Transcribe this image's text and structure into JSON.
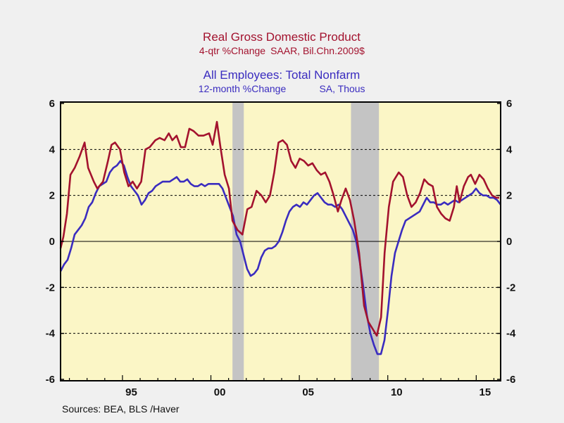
{
  "chart_data": {
    "type": "line",
    "title_1": "Real Gross Domestic Product",
    "subtitle_1_left": "4-qtr %Change",
    "subtitle_1_right": "SAAR, Bil.Chn.2009$",
    "title_2": "All Employees: Total Nonfarm",
    "subtitle_2_left": "12-month %Change",
    "subtitle_2_right": "SA, Thous",
    "source": "Sources:  BEA, BLS /Haver",
    "xlim": [
      1991.5,
      2016.38
    ],
    "ylim": [
      -6,
      6
    ],
    "y_ticks": [
      -6,
      -4,
      -2,
      0,
      2,
      4,
      6
    ],
    "y_tick_labels": [
      "-6",
      "-4",
      "-2",
      "0",
      "2",
      "4",
      "6"
    ],
    "x_ticks": [
      1995.5,
      2000.5,
      2005.5,
      2010.5,
      2015.5
    ],
    "x_tick_labels": [
      "95",
      "00",
      "05",
      "10",
      "15"
    ],
    "grid": "dashed horizontal at ±2, ±4; solid at 0",
    "colors": {
      "gdp": "#a3122e",
      "employment": "#3a2cbf",
      "plot_bg": "#fbf6c6",
      "recession": "#c4c4c4"
    },
    "recessions": [
      [
        2001.22,
        2001.86
      ],
      [
        2007.92,
        2009.5
      ]
    ],
    "series": [
      {
        "name": "Real Gross Domestic Product, 4-qtr %Change",
        "x": [
          1991.5,
          1991.66,
          1991.86,
          1992.06,
          1992.3,
          1992.58,
          1992.86,
          1993.06,
          1993.38,
          1993.58,
          1993.9,
          1994.18,
          1994.38,
          1994.58,
          1994.86,
          1995.1,
          1995.34,
          1995.58,
          1995.82,
          1996.06,
          1996.3,
          1996.54,
          1996.86,
          1997.1,
          1997.38,
          1997.62,
          1997.82,
          1998.06,
          1998.3,
          1998.54,
          1998.78,
          1999.02,
          1999.3,
          1999.58,
          1999.9,
          2000.1,
          2000.34,
          2000.54,
          2000.78,
          2001.02,
          2001.22,
          2001.5,
          2001.78,
          2002.06,
          2002.3,
          2002.58,
          2002.86,
          2003.1,
          2003.34,
          2003.58,
          2003.82,
          2004.06,
          2004.3,
          2004.54,
          2004.78,
          2005.02,
          2005.26,
          2005.5,
          2005.74,
          2005.98,
          2006.22,
          2006.46,
          2006.7,
          2006.94,
          2007.18,
          2007.38,
          2007.62,
          2007.86,
          2008.1,
          2008.38,
          2008.66,
          2008.9,
          2009.38,
          2009.62,
          2009.82,
          2010.06,
          2010.3,
          2010.62,
          2010.86,
          2011.1,
          2011.34,
          2011.58,
          2011.82,
          2012.06,
          2012.3,
          2012.54,
          2012.78,
          2013.02,
          2013.26,
          2013.5,
          2013.74,
          2013.9,
          2014.06,
          2014.3,
          2014.54,
          2014.7,
          2014.94,
          2015.18,
          2015.42,
          2015.66,
          2015.9,
          2016.14,
          2016.3
        ],
        "values": [
          -0.3,
          0.2,
          1.2,
          2.9,
          3.2,
          3.7,
          4.3,
          3.2,
          2.6,
          2.3,
          2.6,
          3.5,
          4.2,
          4.3,
          4.0,
          3.0,
          2.4,
          2.6,
          2.3,
          2.6,
          4.0,
          4.1,
          4.4,
          4.5,
          4.4,
          4.7,
          4.4,
          4.6,
          4.1,
          4.1,
          4.9,
          4.8,
          4.6,
          4.6,
          4.7,
          4.2,
          5.2,
          4.1,
          2.9,
          2.3,
          0.9,
          0.5,
          0.3,
          1.4,
          1.5,
          2.2,
          2.0,
          1.7,
          2.0,
          3.0,
          4.3,
          4.4,
          4.2,
          3.5,
          3.2,
          3.6,
          3.5,
          3.3,
          3.4,
          3.1,
          2.9,
          3.0,
          2.6,
          2.0,
          1.3,
          1.8,
          2.3,
          1.8,
          0.9,
          -0.5,
          -2.8,
          -3.5,
          -4.1,
          -3.3,
          -0.5,
          1.5,
          2.6,
          3.0,
          2.8,
          2.0,
          1.5,
          1.7,
          2.1,
          2.7,
          2.5,
          2.4,
          1.5,
          1.2,
          1.0,
          0.9,
          1.5,
          2.4,
          1.7,
          2.4,
          2.8,
          2.9,
          2.5,
          2.9,
          2.7,
          2.3,
          2.0,
          1.9,
          1.9
        ]
      },
      {
        "name": "All Employees: Total Nonfarm, 12-month %Change",
        "x_start": 1991.5,
        "x_end": 2016.38,
        "values": [
          -1.3,
          -1.0,
          -0.8,
          -0.3,
          0.3,
          0.5,
          0.7,
          1.0,
          1.5,
          1.7,
          2.1,
          2.4,
          2.5,
          2.6,
          3.0,
          3.2,
          3.3,
          3.5,
          3.3,
          2.8,
          2.4,
          2.2,
          2.0,
          1.6,
          1.8,
          2.1,
          2.2,
          2.4,
          2.5,
          2.6,
          2.6,
          2.6,
          2.7,
          2.8,
          2.6,
          2.6,
          2.7,
          2.5,
          2.4,
          2.4,
          2.5,
          2.4,
          2.5,
          2.5,
          2.5,
          2.5,
          2.3,
          1.9,
          1.5,
          1.1,
          0.3,
          0.0,
          -0.6,
          -1.2,
          -1.5,
          -1.4,
          -1.2,
          -0.7,
          -0.4,
          -0.3,
          -0.3,
          -0.2,
          0.0,
          0.4,
          0.9,
          1.3,
          1.5,
          1.6,
          1.5,
          1.7,
          1.6,
          1.8,
          2.0,
          2.1,
          1.9,
          1.7,
          1.6,
          1.6,
          1.5,
          1.6,
          1.4,
          1.1,
          0.8,
          0.5,
          0.0,
          -0.9,
          -2.0,
          -3.2,
          -4.0,
          -4.5,
          -4.9,
          -4.9,
          -4.3,
          -3.0,
          -1.5,
          -0.5,
          0.0,
          0.5,
          0.9,
          1.0,
          1.1,
          1.2,
          1.3,
          1.6,
          1.9,
          1.7,
          1.7,
          1.6,
          1.6,
          1.7,
          1.6,
          1.7,
          1.8,
          1.7,
          1.8,
          1.9,
          2.0,
          2.1,
          2.3,
          2.1,
          2.0,
          2.0,
          1.9,
          1.9,
          1.8,
          1.6
        ]
      }
    ]
  }
}
